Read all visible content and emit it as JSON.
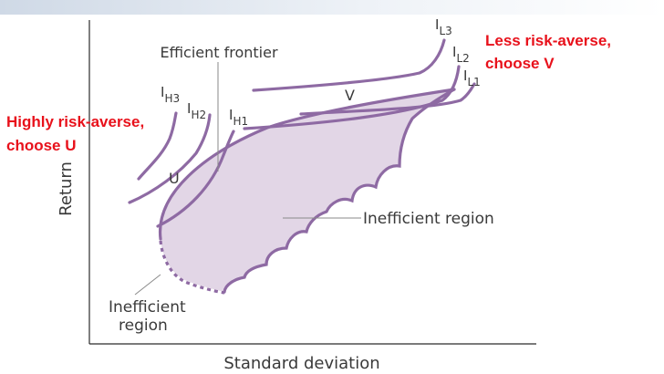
{
  "labels": {
    "y_axis": "Return",
    "x_axis": "Standard deviation",
    "efficient_frontier": "Efficient frontier",
    "inefficient_region_right": "Inefficient region",
    "inefficient_region_left_line1": "Inefficient",
    "inefficient_region_left_line2": "region",
    "point_u": "U",
    "point_v": "V"
  },
  "indifference_curves": [
    {
      "id": "H3",
      "main": "I",
      "sub": "H3"
    },
    {
      "id": "H2",
      "main": "I",
      "sub": "H2"
    },
    {
      "id": "H1",
      "main": "I",
      "sub": "H1"
    },
    {
      "id": "L3",
      "main": "I",
      "sub": "L3"
    },
    {
      "id": "L2",
      "main": "I",
      "sub": "L2"
    },
    {
      "id": "L1",
      "main": "I",
      "sub": "L1"
    }
  ],
  "annotations": {
    "highly_risk_averse_line1": "Highly risk-averse,",
    "highly_risk_averse_line2": "choose U",
    "less_risk_averse_line1": "Less risk-averse,",
    "less_risk_averse_line2": "choose V"
  },
  "colors": {
    "curve": "#8e6aa3",
    "region_fill": "#e2d6e6",
    "annotation": "#e8111b",
    "axis": "#2b2b2b"
  }
}
